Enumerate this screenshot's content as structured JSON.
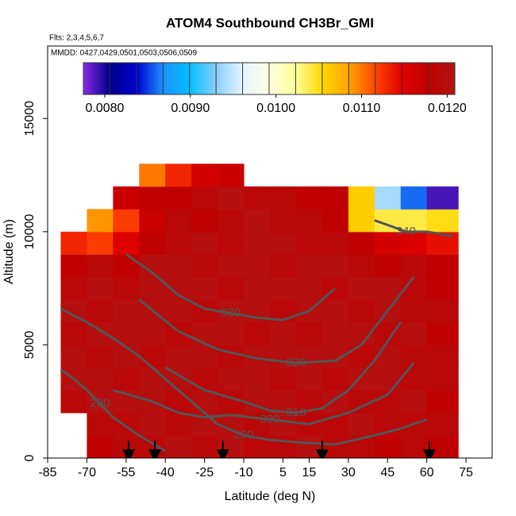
{
  "chart_data": {
    "type": "heatmap",
    "title": "ATOM4 Southbound CH3Br_GMI",
    "subtitle": "Flts: 2,3,4,5,6,7",
    "annotation": "MMDD: 0427,0429,0501,0503,0506,0509",
    "x_label": "Latitude (deg N)",
    "y_label": "Altitude (m)",
    "xlim": [
      -85,
      85
    ],
    "ylim": [
      0,
      18200
    ],
    "xticks": [
      -85,
      -70,
      -55,
      -40,
      -25,
      -10,
      5,
      15,
      30,
      45,
      60,
      75
    ],
    "yticks": [
      0,
      5000,
      10000,
      15000
    ],
    "clim": [
      0.00775,
      0.01209
    ],
    "cticks": [
      {
        "value": 0.008,
        "label": "0.0080"
      },
      {
        "value": 0.009,
        "label": "0.0090"
      },
      {
        "value": 0.01,
        "label": "0.0100"
      },
      {
        "value": 0.011,
        "label": "0.0110"
      },
      {
        "value": 0.012,
        "label": "0.0120"
      }
    ],
    "colorscale": [
      "#8a2be2",
      "#00008b",
      "#0000cd",
      "#1e90ff",
      "#00bfff",
      "#87cefa",
      "#e6f4ff",
      "#ffffe0",
      "#ffff99",
      "#ffd700",
      "#ffa500",
      "#ff4500",
      "#e00000",
      "#c00000",
      "#b01515"
    ],
    "x_edges": [
      -80,
      -70,
      -60,
      -50,
      -40,
      -30,
      -20,
      -10,
      0,
      10,
      20,
      30,
      40,
      50,
      60,
      72
    ],
    "y_edges": [
      0,
      1000,
      2000,
      3000,
      4000,
      5000,
      6000,
      7000,
      8000,
      9000,
      10000,
      11000,
      12000,
      13000
    ],
    "z": [
      [
        null,
        0.0118,
        0.0119,
        0.0119,
        0.012,
        0.0119,
        0.012,
        0.0119,
        0.0119,
        0.012,
        0.0119,
        0.0119,
        0.0118,
        0.0119,
        0.0118
      ],
      [
        null,
        0.0119,
        0.0119,
        0.012,
        0.0119,
        0.012,
        0.012,
        0.0119,
        0.012,
        0.0119,
        0.0119,
        0.012,
        0.0119,
        0.0119,
        0.0119
      ],
      [
        0.0119,
        0.012,
        0.012,
        0.012,
        0.0119,
        0.012,
        0.0119,
        0.012,
        0.012,
        0.0119,
        0.012,
        0.0119,
        0.0119,
        0.012,
        0.0118
      ],
      [
        0.012,
        0.012,
        0.0119,
        0.012,
        0.012,
        0.0119,
        0.012,
        0.012,
        0.0119,
        0.012,
        0.0119,
        0.012,
        0.012,
        0.0119,
        0.0119
      ],
      [
        0.012,
        0.0119,
        0.012,
        0.0119,
        0.012,
        0.012,
        0.0119,
        0.012,
        0.012,
        0.012,
        0.012,
        0.0119,
        0.012,
        0.0119,
        0.0119
      ],
      [
        0.0119,
        0.012,
        0.012,
        0.012,
        0.0119,
        0.012,
        0.012,
        0.0119,
        0.012,
        0.0119,
        0.012,
        0.012,
        0.0119,
        0.012,
        0.0118
      ],
      [
        0.012,
        0.0119,
        0.012,
        0.012,
        0.012,
        0.0119,
        0.012,
        0.012,
        0.0119,
        0.012,
        0.012,
        0.0119,
        0.012,
        0.0119,
        0.0119
      ],
      [
        0.0119,
        0.012,
        0.0119,
        0.012,
        0.012,
        0.012,
        0.0119,
        0.012,
        0.012,
        0.012,
        0.0119,
        0.012,
        0.012,
        0.0119,
        0.0118
      ],
      [
        0.0118,
        0.0119,
        0.0118,
        0.012,
        0.012,
        0.0119,
        0.012,
        0.012,
        0.0119,
        0.012,
        0.012,
        0.0119,
        0.0118,
        0.0119,
        0.0118
      ],
      [
        0.0113,
        0.0112,
        0.0115,
        0.0118,
        0.0119,
        0.012,
        0.0119,
        0.012,
        0.012,
        0.0119,
        0.0119,
        0.0118,
        0.0116,
        0.0115,
        0.0114
      ],
      [
        null,
        0.0109,
        0.0112,
        0.0117,
        0.0119,
        0.0118,
        0.0119,
        0.012,
        0.0119,
        0.0119,
        0.0118,
        0.0106,
        0.0104,
        0.0104,
        0.0105
      ],
      [
        null,
        null,
        0.0117,
        0.0118,
        0.0118,
        0.0119,
        0.012,
        0.0119,
        0.0119,
        0.0118,
        0.0118,
        0.0106,
        0.0094,
        0.0086,
        0.0079
      ],
      [
        null,
        null,
        null,
        0.011,
        0.0113,
        0.0116,
        0.0117,
        null,
        null,
        null,
        null,
        null,
        null,
        null,
        null
      ]
    ],
    "contour_color": "#555555",
    "contours": [
      {
        "level": 340,
        "x": [
          40,
          45,
          52,
          60,
          70
        ],
        "y": [
          10500,
          10300,
          10000,
          10000,
          9800
        ]
      },
      {
        "level": 330,
        "x": [
          -55,
          -45,
          -35,
          -25,
          -15,
          -5,
          5,
          15,
          25
        ],
        "y": [
          9000,
          8200,
          7200,
          6600,
          6400,
          6200,
          6100,
          6500,
          7500
        ]
      },
      {
        "level": 320,
        "x": [
          -50,
          -35,
          -20,
          -5,
          10,
          25,
          35,
          45,
          55
        ],
        "y": [
          7000,
          5600,
          4800,
          4400,
          4200,
          4300,
          5000,
          6500,
          8000
        ]
      },
      {
        "level": 310,
        "x": [
          -40,
          -25,
          -10,
          0,
          10,
          20,
          30,
          40,
          50
        ],
        "y": [
          4000,
          3000,
          2500,
          2100,
          2000,
          2200,
          3000,
          4300,
          6000
        ]
      },
      {
        "level": 300,
        "x": [
          -60,
          -45,
          -35,
          -25,
          -15,
          0,
          15,
          30,
          45,
          55
        ],
        "y": [
          3000,
          2500,
          2000,
          1800,
          1900,
          1700,
          1500,
          2000,
          2800,
          4200
        ]
      },
      {
        "level": 290,
        "x": [
          -80,
          -70,
          -60,
          -50,
          -40,
          -30,
          -20,
          -10,
          0,
          10,
          25,
          40,
          50,
          60
        ],
        "y": [
          6600,
          6000,
          5300,
          4500,
          3500,
          2500,
          1500,
          1000,
          800,
          700,
          600,
          1000,
          1300,
          1700
        ]
      },
      {
        "level": 280,
        "x": [
          -80,
          -75,
          -70,
          -65,
          -60,
          -50,
          -40
        ],
        "y": [
          3900,
          3500,
          3000,
          2400,
          1800,
          1000,
          300
        ]
      }
    ],
    "arrows_x": [
      -54,
      -44,
      -18,
      20,
      61
    ]
  }
}
